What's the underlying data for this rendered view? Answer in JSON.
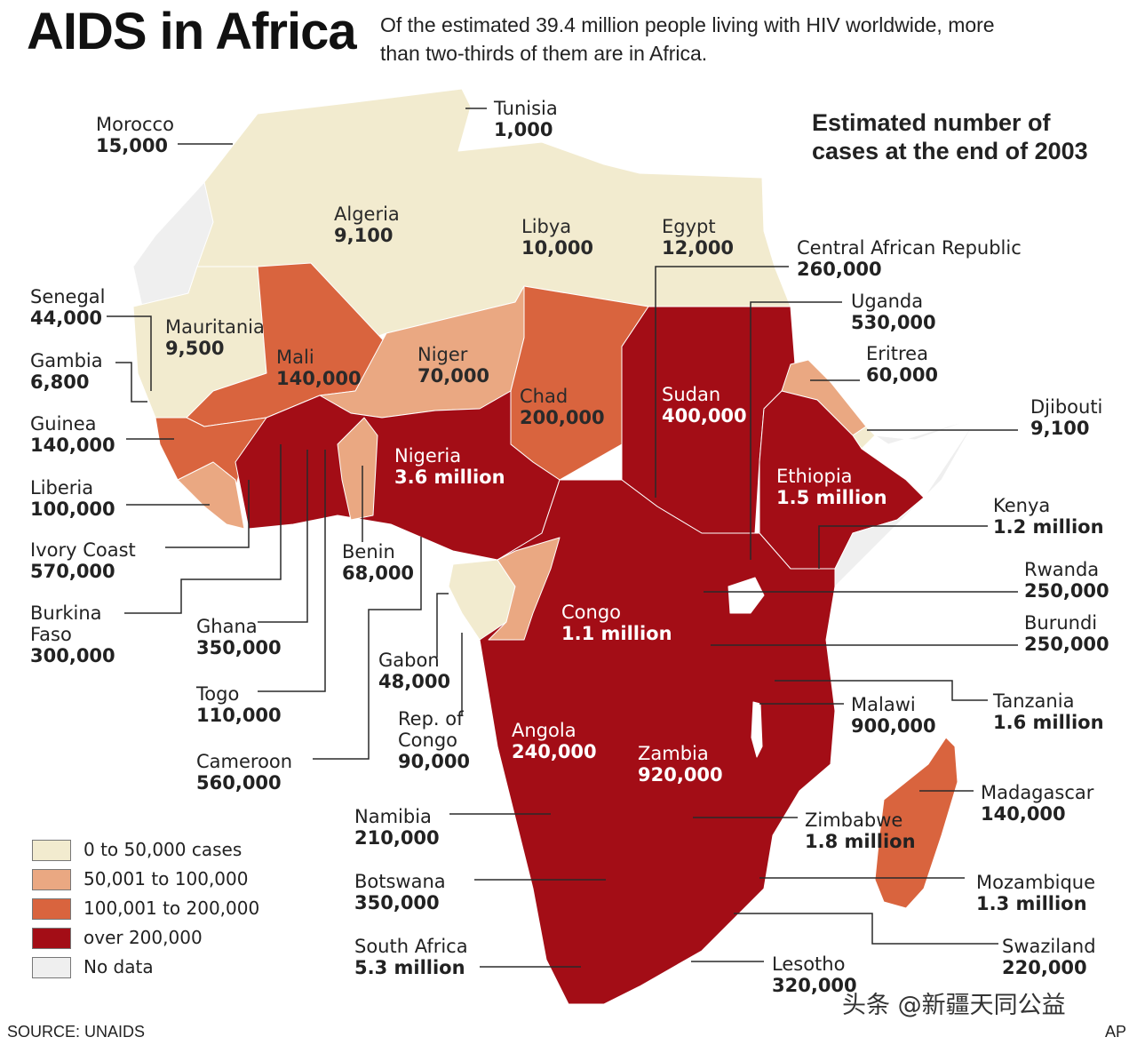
{
  "title": "AIDS in Africa",
  "subtitle": {
    "line1": "Of the estimated 39.4 million people living with HIV worldwide, more",
    "line2": "than two-thirds of them are in Africa."
  },
  "map_heading": {
    "line1": "Estimated number of",
    "line2": "cases at the end of 2003"
  },
  "category_colors": {
    "cat1": "#f2ebcf",
    "cat2": "#eaa882",
    "cat3": "#d9643e",
    "cat4": "#a30d16",
    "nodata": "#efefef"
  },
  "legend": [
    {
      "label": "0 to 50,000 cases",
      "color": "#f2ebcf"
    },
    {
      "label": "50,001 to 100,000",
      "color": "#eaa882"
    },
    {
      "label": "100,001 to 200,000",
      "color": "#d9643e"
    },
    {
      "label": "over 200,000",
      "color": "#a30d16"
    },
    {
      "label": "No data",
      "color": "#efefef"
    }
  ],
  "countries": {
    "morocco": {
      "name": "Morocco",
      "value": "15,000"
    },
    "tunisia": {
      "name": "Tunisia",
      "value": "1,000"
    },
    "algeria": {
      "name": "Algeria",
      "value": "9,100"
    },
    "libya": {
      "name": "Libya",
      "value": "10,000"
    },
    "egypt": {
      "name": "Egypt",
      "value": "12,000"
    },
    "car": {
      "name": "Central African Republic",
      "value": "260,000"
    },
    "uganda": {
      "name": "Uganda",
      "value": "530,000"
    },
    "eritrea": {
      "name": "Eritrea",
      "value": "60,000"
    },
    "djibouti": {
      "name": "Djibouti",
      "value": "9,100"
    },
    "kenya": {
      "name": "Kenya",
      "value": "1.2 million"
    },
    "rwanda": {
      "name": "Rwanda",
      "value": "250,000"
    },
    "burundi": {
      "name": "Burundi",
      "value": "250,000"
    },
    "tanzania": {
      "name": "Tanzania",
      "value": "1.6 million"
    },
    "malawi": {
      "name": "Malawi",
      "value": "900,000"
    },
    "madagascar": {
      "name": "Madagascar",
      "value": "140,000"
    },
    "zimbabwe": {
      "name": "Zimbabwe",
      "value": "1.8 million"
    },
    "mozambique": {
      "name": "Mozambique",
      "value": "1.3 million"
    },
    "swaziland": {
      "name": "Swaziland",
      "value": "220,000"
    },
    "lesotho": {
      "name": "Lesotho",
      "value": "320,000"
    },
    "south_africa": {
      "name": "South Africa",
      "value": "5.3 million"
    },
    "botswana": {
      "name": "Botswana",
      "value": "350,000"
    },
    "namibia": {
      "name": "Namibia",
      "value": "210,000"
    },
    "angola": {
      "name": "Angola",
      "value": "240,000"
    },
    "zambia": {
      "name": "Zambia",
      "value": "920,000"
    },
    "congo_drc": {
      "name": "Congo",
      "value": "1.1 million"
    },
    "rep_congo": {
      "name1": "Rep. of",
      "name2": "Congo",
      "value": "90,000"
    },
    "gabon": {
      "name": "Gabon",
      "value": "48,000"
    },
    "cameroon": {
      "name": "Cameroon",
      "value": "560,000"
    },
    "togo": {
      "name": "Togo",
      "value": "110,000"
    },
    "ghana": {
      "name": "Ghana",
      "value": "350,000"
    },
    "benin": {
      "name": "Benin",
      "value": "68,000"
    },
    "burkina": {
      "name1": "Burkina",
      "name2": "Faso",
      "value": "300,000"
    },
    "ivory_coast": {
      "name": "Ivory Coast",
      "value": "570,000"
    },
    "liberia": {
      "name": "Liberia",
      "value": "100,000"
    },
    "guinea": {
      "name": "Guinea",
      "value": "140,000"
    },
    "gambia": {
      "name": "Gambia",
      "value": "6,800"
    },
    "senegal": {
      "name": "Senegal",
      "value": "44,000"
    },
    "mauritania": {
      "name": "Mauritania",
      "value": "9,500"
    },
    "mali": {
      "name": "Mali",
      "value": "140,000"
    },
    "niger": {
      "name": "Niger",
      "value": "70,000"
    },
    "chad": {
      "name": "Chad",
      "value": "200,000"
    },
    "sudan": {
      "name": "Sudan",
      "value": "400,000"
    },
    "nigeria": {
      "name": "Nigeria",
      "value": "3.6 million"
    },
    "ethiopia": {
      "name": "Ethiopia",
      "value": "1.5 million"
    }
  },
  "source": "SOURCE: UNAIDS",
  "credit": "AP",
  "watermark": "头条 @新疆天同公益"
}
